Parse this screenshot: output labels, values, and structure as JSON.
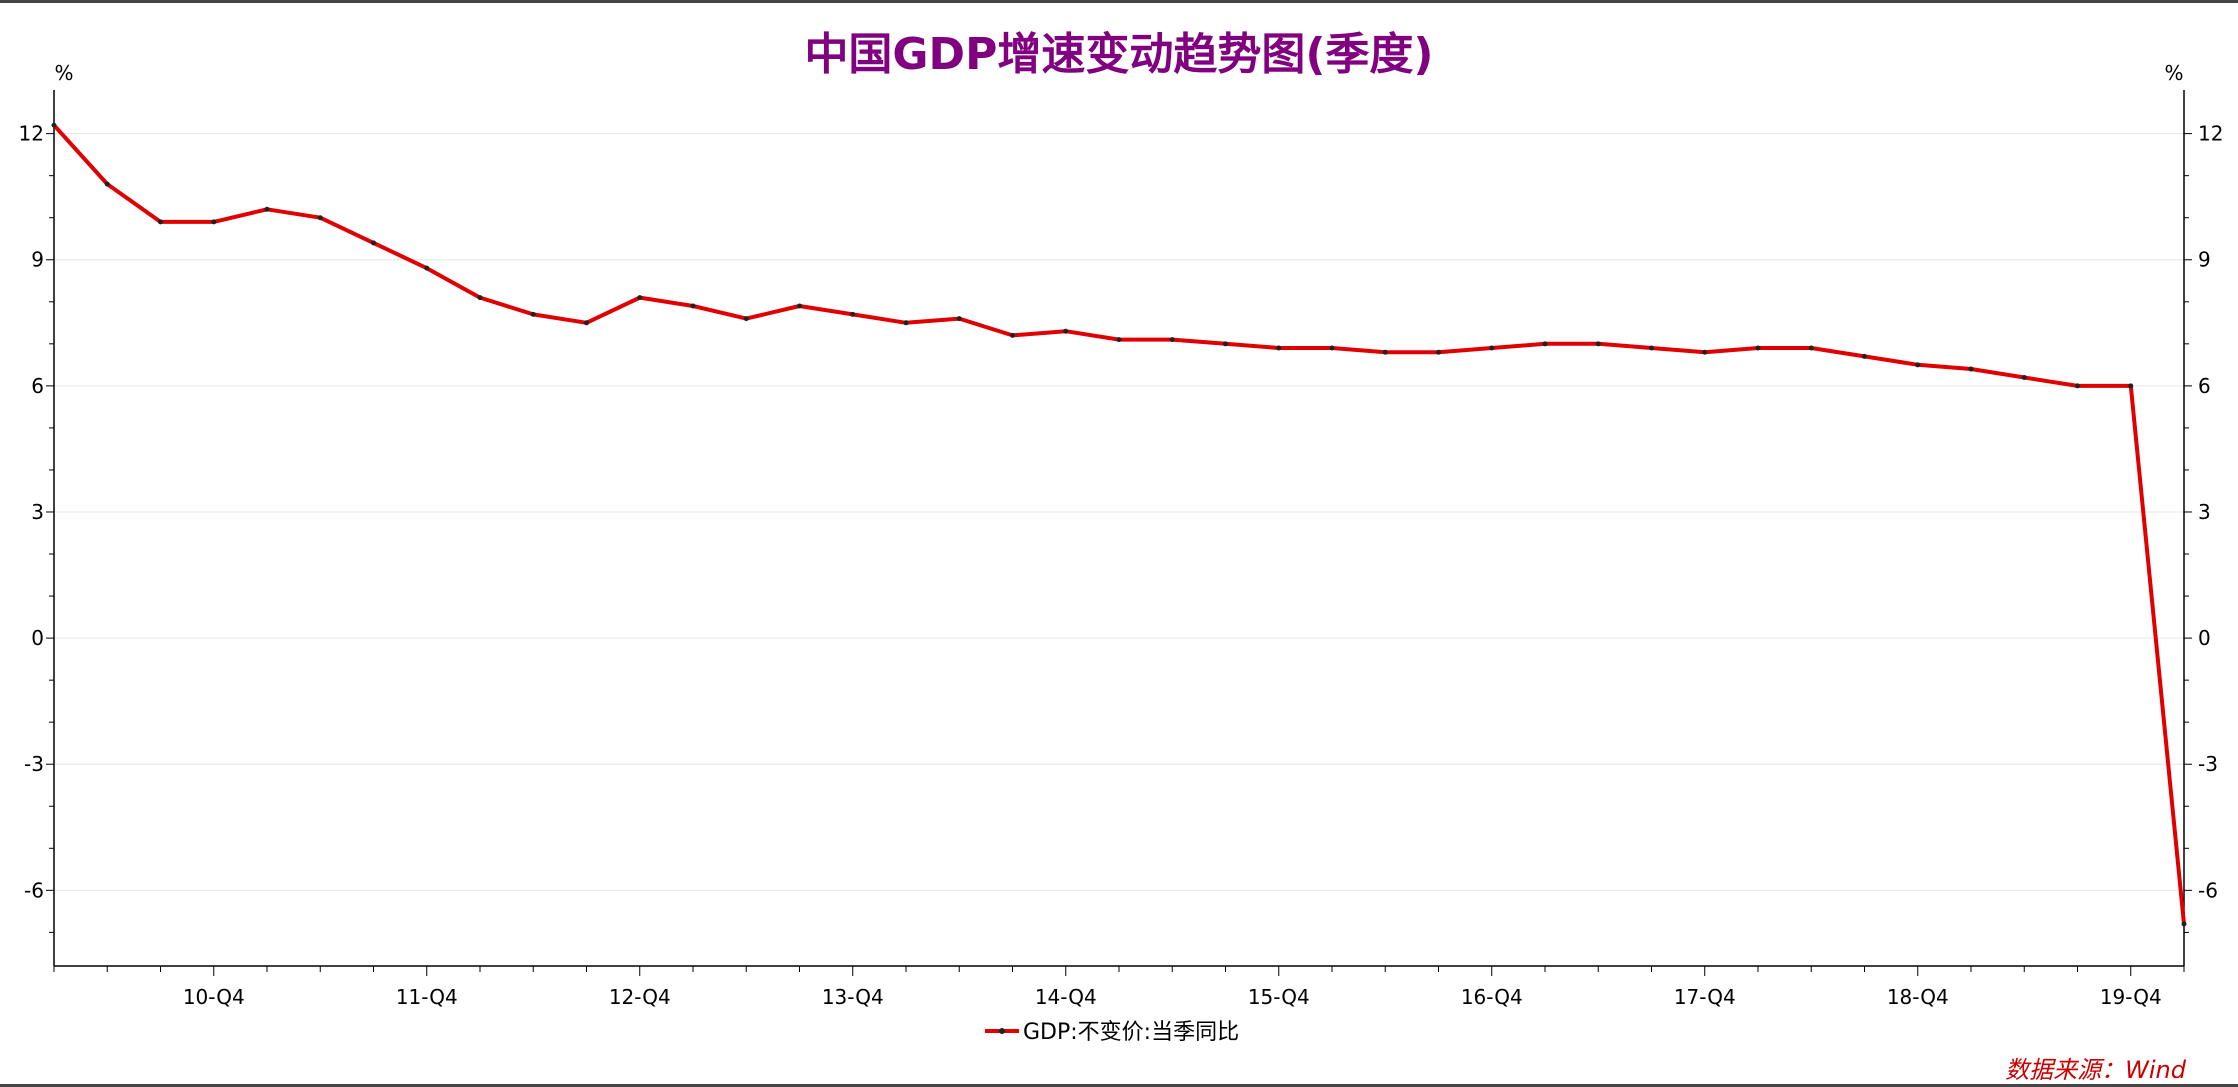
{
  "chart_data": {
    "type": "line",
    "title": "中国GDP增速变动趋势图(季度)",
    "unit_left": "%",
    "unit_right": "%",
    "categories": [
      "10-Q1",
      "10-Q2",
      "10-Q3",
      "10-Q4",
      "11-Q1",
      "11-Q2",
      "11-Q3",
      "11-Q4",
      "12-Q1",
      "12-Q2",
      "12-Q3",
      "12-Q4",
      "13-Q1",
      "13-Q2",
      "13-Q3",
      "13-Q4",
      "14-Q1",
      "14-Q2",
      "14-Q3",
      "14-Q4",
      "15-Q1",
      "15-Q2",
      "15-Q3",
      "15-Q4",
      "16-Q1",
      "16-Q2",
      "16-Q3",
      "16-Q4",
      "17-Q1",
      "17-Q2",
      "17-Q3",
      "17-Q4",
      "18-Q1",
      "18-Q2",
      "18-Q3",
      "18-Q4",
      "19-Q1",
      "19-Q2",
      "19-Q3",
      "19-Q4",
      "20-Q1"
    ],
    "x_tick_labels": [
      "10-Q4",
      "11-Q4",
      "12-Q4",
      "13-Q4",
      "14-Q4",
      "15-Q4",
      "16-Q4",
      "17-Q4",
      "18-Q4",
      "19-Q4"
    ],
    "series": [
      {
        "name": "GDP:不变价:当季同比",
        "color": "#e00000",
        "values": [
          12.2,
          10.8,
          9.9,
          9.9,
          10.2,
          10.0,
          9.4,
          8.8,
          8.1,
          7.7,
          7.5,
          8.1,
          7.9,
          7.6,
          7.9,
          7.7,
          7.5,
          7.6,
          7.2,
          7.3,
          7.1,
          7.1,
          7.0,
          6.9,
          6.9,
          6.8,
          6.8,
          6.9,
          7.0,
          7.0,
          6.9,
          6.8,
          6.9,
          6.9,
          6.7,
          6.5,
          6.4,
          6.2,
          6.0,
          6.0,
          -6.8
        ]
      }
    ],
    "yticks": [
      12,
      9,
      6,
      3,
      0,
      -3,
      -6
    ],
    "ylim": [
      -7.8,
      12.8
    ],
    "grid": true,
    "legend_position": "bottom-center",
    "source": "数据来源：Wind"
  }
}
